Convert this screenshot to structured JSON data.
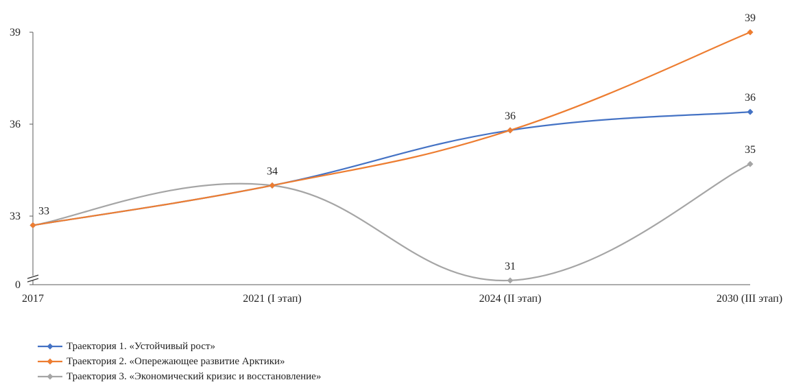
{
  "chart_data": {
    "type": "line",
    "categories": [
      "2017",
      "2021 (I этап)",
      "2024 (II этап)",
      "2030 (III этап)"
    ],
    "y_ticks": [
      "0",
      "33",
      "36",
      "39"
    ],
    "y_axis_break": true,
    "series": [
      {
        "name": "Траектория 1. «Устойчивый рост»",
        "color": "#4472C4",
        "values": [
          32.7,
          34.0,
          35.8,
          36.4
        ],
        "labels": [
          "",
          "",
          "36",
          "36"
        ]
      },
      {
        "name": "Траектория 2. «Опережающее развитие Арктики»",
        "color": "#ED7D31",
        "values": [
          32.7,
          34.0,
          35.8,
          39.0
        ],
        "labels": [
          "",
          "",
          "",
          "39"
        ]
      },
      {
        "name": "Траектория 3. «Экономический кризис и восстановление»",
        "color": "#A5A5A5",
        "values": [
          32.7,
          34.0,
          30.9,
          34.7
        ],
        "labels": [
          "33",
          "34",
          "31",
          "35"
        ]
      }
    ],
    "legend_position": "bottom-left",
    "grid": false,
    "marker": "diamond"
  }
}
